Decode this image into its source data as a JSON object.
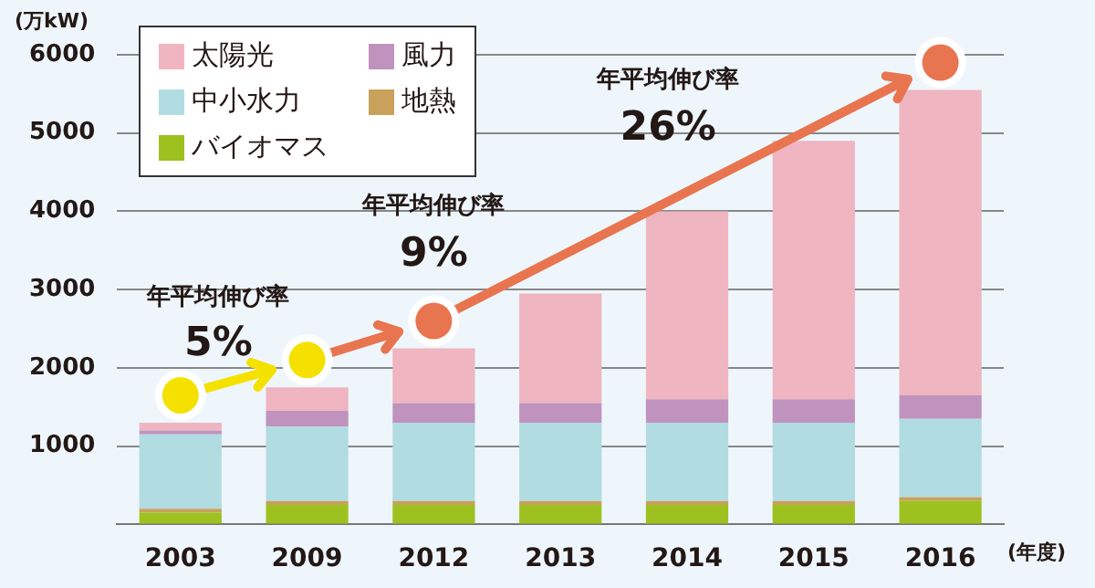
{
  "chart_data": {
    "type": "bar",
    "stacked": true,
    "ylabel": "(万kW)",
    "xlabel": "(年度)",
    "categories": [
      "2003",
      "2009",
      "2012",
      "2013",
      "2014",
      "2015",
      "2016"
    ],
    "series": [
      {
        "name": "バイオマス",
        "color": "#9dc21f",
        "values": [
          150,
          250,
          250,
          250,
          250,
          250,
          300
        ]
      },
      {
        "name": "地熱",
        "color": "#c9a15a",
        "values": [
          50,
          50,
          50,
          50,
          50,
          50,
          50
        ]
      },
      {
        "name": "中小水力",
        "color": "#b0dce2",
        "values": [
          950,
          950,
          1000,
          1000,
          1000,
          1000,
          1000
        ]
      },
      {
        "name": "風力",
        "color": "#bf93bd",
        "values": [
          50,
          200,
          250,
          250,
          300,
          300,
          300
        ]
      },
      {
        "name": "太陽光",
        "color": "#efb5c0",
        "values": [
          100,
          300,
          700,
          1400,
          2400,
          3300,
          3900
        ]
      }
    ],
    "ylim": [
      0,
      6000
    ],
    "yticks": [
      {
        "value": 0,
        "label": null
      },
      1000,
      2000,
      3000,
      4000,
      5000,
      6000
    ],
    "grid": "y",
    "legend": "top left",
    "annotations": [
      "年平均伸び率",
      "5%",
      "年平均伸び率",
      {
        "text": "9%",
        "x": "2012",
        "y": 2250
      },
      "年平均伸び率",
      "26%"
    ]
  }
}
